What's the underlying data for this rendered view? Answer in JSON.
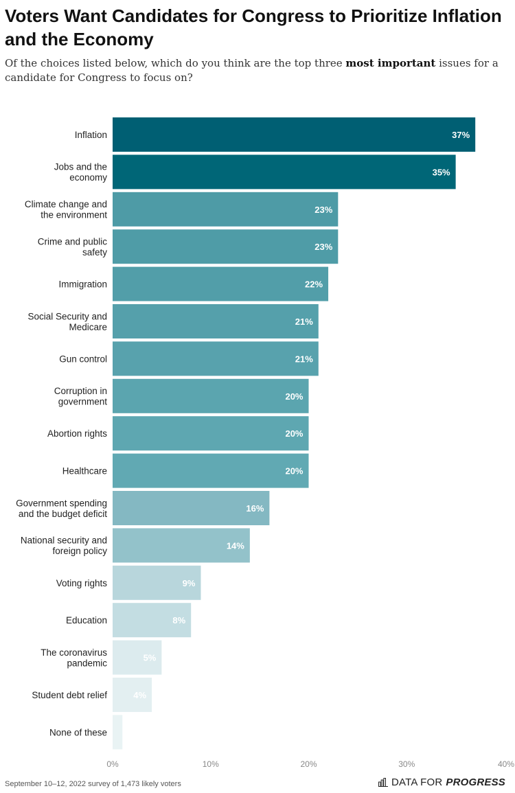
{
  "header": {
    "title": "Voters Want Candidates for Congress to Prioritize Inflation and the Economy",
    "subtitle_pre": "Of the choices listed below, which do you think are the top three ",
    "subtitle_bold": "most important",
    "subtitle_post": " issues for a candidate for Congress to focus on?"
  },
  "footer": {
    "note": "September 10–12, 2022 survey of 1,473 likely voters",
    "brand_regular": "DATA FOR",
    "brand_bold": "PROGRESS",
    "brand_icon": "bar-chart-icon"
  },
  "chart_data": {
    "type": "bar",
    "orientation": "horizontal",
    "categories": [
      "Inflation",
      "Jobs and the economy",
      "Climate change and the environment",
      "Crime and public safety",
      "Immigration",
      "Social Security and Medicare",
      "Gun control",
      "Corruption in government",
      "Abortion rights",
      "Healthcare",
      "Government spending and the budget deficit",
      "National security and foreign policy",
      "Voting rights",
      "Education",
      "The coronavirus pandemic",
      "Student debt relief",
      "None of these"
    ],
    "category_lines": [
      [
        "Inflation"
      ],
      [
        "Jobs and the",
        "economy"
      ],
      [
        "Climate change and",
        "the environment"
      ],
      [
        "Crime and public",
        "safety"
      ],
      [
        "Immigration"
      ],
      [
        "Social Security and",
        "Medicare"
      ],
      [
        "Gun control"
      ],
      [
        "Corruption in",
        "government"
      ],
      [
        "Abortion rights"
      ],
      [
        "Healthcare"
      ],
      [
        "Government spending",
        "and the budget deficit"
      ],
      [
        "National security and",
        "foreign policy"
      ],
      [
        "Voting rights"
      ],
      [
        "Education"
      ],
      [
        "The coronavirus",
        "pandemic"
      ],
      [
        "Student debt relief"
      ],
      [
        "None of these"
      ]
    ],
    "values": [
      37,
      35,
      23,
      23,
      22,
      21,
      21,
      20,
      20,
      20,
      16,
      14,
      9,
      8,
      5,
      4,
      1
    ],
    "value_labels": [
      "37%",
      "35%",
      "23%",
      "23%",
      "22%",
      "21%",
      "21%",
      "20%",
      "20%",
      "20%",
      "16%",
      "14%",
      "9%",
      "8%",
      "5%",
      "4%",
      ""
    ],
    "colors": [
      "#005f73",
      "#006677",
      "#4e9ba6",
      "#4f9ca7",
      "#529ea9",
      "#55a0ab",
      "#58a2ad",
      "#5ba5af",
      "#5ea7b1",
      "#61a9b3",
      "#84b8c2",
      "#93c2ca",
      "#b8d6dc",
      "#c3dde2",
      "#dcebee",
      "#e3eff1",
      "#e9f3f4"
    ],
    "label_colors": [
      "#ffffff",
      "#ffffff",
      "#ffffff",
      "#ffffff",
      "#ffffff",
      "#ffffff",
      "#ffffff",
      "#ffffff",
      "#ffffff",
      "#ffffff",
      "#ffffff",
      "#ffffff",
      "#ffffff",
      "#ffffff",
      "#ffffff",
      "#ffffff",
      "#ffffff"
    ],
    "xticks": [
      0,
      10,
      20,
      30,
      40
    ],
    "xtick_labels": [
      "0%",
      "10%",
      "20%",
      "30%",
      "40%"
    ],
    "xlim": [
      0,
      40
    ],
    "grid": false,
    "legend": "none"
  }
}
